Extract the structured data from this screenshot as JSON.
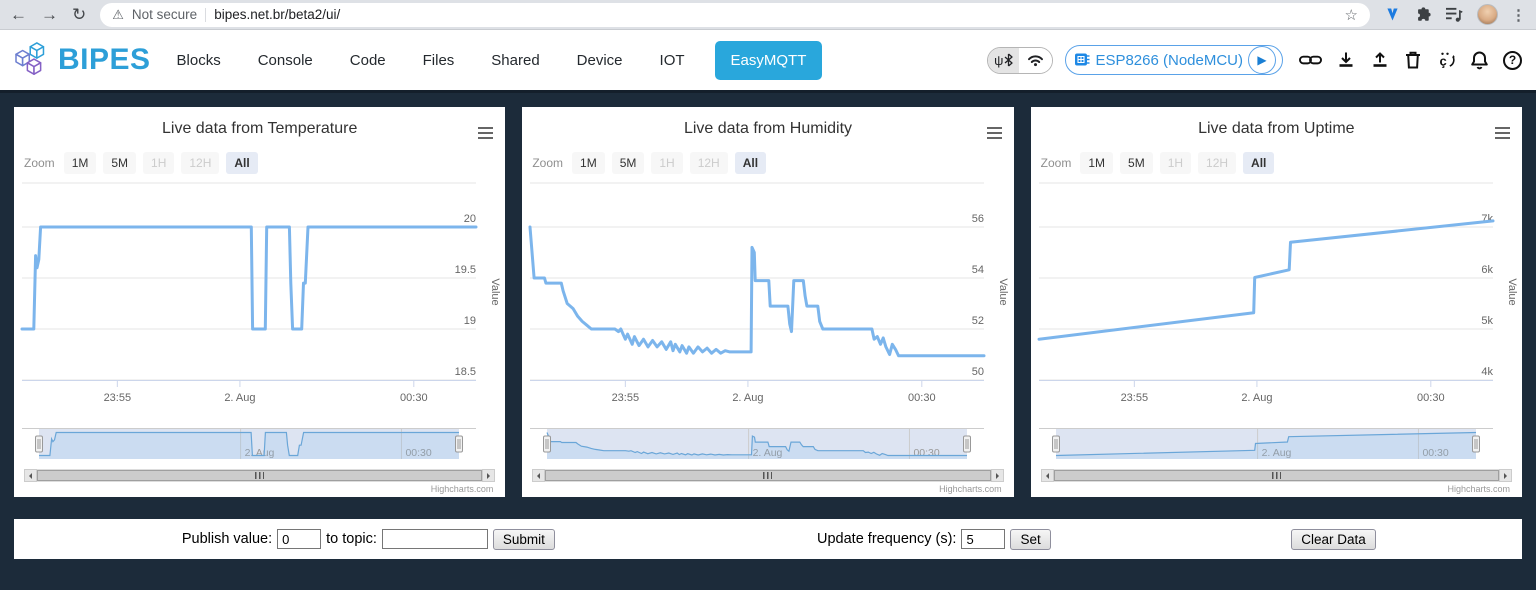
{
  "colors": {
    "brand_blue": "#2d9fd8",
    "easymqtt_button": "#29a7dc",
    "series_blue": "#7cb5ec",
    "background_dark": "#1c2b3a",
    "navigator_mask": "rgba(102,133,194,0.22)"
  },
  "browser": {
    "security_label": "Not secure",
    "url": "bipes.net.br/beta2/ui/"
  },
  "navbar": {
    "brand": "BIPES",
    "items": [
      "Blocks",
      "Console",
      "Code",
      "Files",
      "Shared",
      "Device",
      "IOT"
    ],
    "active_item": "EasyMQTT",
    "device_name": "ESP8266 (NodeMCU)",
    "toolbar_icons": [
      "usb-icon",
      "bluetooth-icon",
      "wifi-icon",
      "play-icon",
      "link-icon",
      "download-icon",
      "upload-icon",
      "trash-icon",
      "language-icon",
      "bell-icon",
      "help-icon"
    ]
  },
  "chart_common": {
    "zoom_label": "Zoom",
    "buttons": [
      {
        "label": "1M",
        "state": "normal"
      },
      {
        "label": "5M",
        "state": "normal"
      },
      {
        "label": "1H",
        "state": "disabled"
      },
      {
        "label": "12H",
        "state": "disabled"
      },
      {
        "label": "All",
        "state": "selected"
      }
    ],
    "ylabel": "Value",
    "credit": "Highcharts.com"
  },
  "chart_data": [
    {
      "type": "line",
      "title": "Live data from Temperature",
      "ylabel": "Value",
      "legend": "none",
      "grid": true,
      "y_ticks": [
        {
          "value": 20,
          "label": "20"
        },
        {
          "value": 19.5,
          "label": "19.5"
        },
        {
          "value": 19,
          "label": "19"
        },
        {
          "value": 18.5,
          "label": "18.5"
        }
      ],
      "x_ticks": [
        {
          "pos": 21,
          "label": "23:55"
        },
        {
          "pos": 48,
          "label": "2. Aug"
        },
        {
          "pos": 86.3,
          "label": "00:30"
        }
      ],
      "navigator_labels": [
        {
          "pos": 48,
          "label": "2. Aug"
        },
        {
          "pos": 86.3,
          "label": "00:30"
        }
      ],
      "series": {
        "name": "Value",
        "color": "#7cb5ec",
        "points": [
          [
            0,
            19
          ],
          [
            2.6,
            19
          ],
          [
            3.0,
            19.72
          ],
          [
            3.3,
            19.6
          ],
          [
            3.7,
            19.68
          ],
          [
            4.1,
            20
          ],
          [
            50.5,
            20
          ],
          [
            50.8,
            19
          ],
          [
            53.6,
            19
          ],
          [
            53.9,
            20
          ],
          [
            58.9,
            20
          ],
          [
            59.2,
            19.45
          ],
          [
            59.6,
            19
          ],
          [
            61.6,
            19
          ],
          [
            62.0,
            19.45
          ],
          [
            62.4,
            19.45
          ],
          [
            63.0,
            20
          ],
          [
            100,
            20
          ]
        ]
      }
    },
    {
      "type": "line",
      "title": "Live data from Humidity",
      "ylabel": "Value",
      "legend": "none",
      "grid": true,
      "y_ticks": [
        {
          "value": 56,
          "label": "56"
        },
        {
          "value": 54,
          "label": "54"
        },
        {
          "value": 52,
          "label": "52"
        },
        {
          "value": 50,
          "label": "50"
        }
      ],
      "x_ticks": [
        {
          "pos": 21,
          "label": "23:55"
        },
        {
          "pos": 48,
          "label": "2. Aug"
        },
        {
          "pos": 86.3,
          "label": "00:30"
        }
      ],
      "navigator_labels": [
        {
          "pos": 48,
          "label": "2. Aug"
        },
        {
          "pos": 86.3,
          "label": "00:30"
        }
      ],
      "series": {
        "name": "Value",
        "color": "#7cb5ec",
        "points": [
          [
            0,
            56
          ],
          [
            0.9,
            54
          ],
          [
            3.2,
            54
          ],
          [
            3.5,
            53.8
          ],
          [
            6.9,
            53.8
          ],
          [
            7.3,
            53.5
          ],
          [
            8.2,
            53.0
          ],
          [
            9.5,
            52.8
          ],
          [
            10.5,
            52.5
          ],
          [
            11.5,
            52.3
          ],
          [
            12.5,
            52.15
          ],
          [
            13.5,
            52
          ],
          [
            18.7,
            52
          ],
          [
            19.5,
            51.9
          ],
          [
            20,
            52
          ],
          [
            21,
            51.6
          ],
          [
            21.5,
            51.8
          ],
          [
            22.5,
            51.4
          ],
          [
            23,
            51.7
          ],
          [
            24,
            51.35
          ],
          [
            25,
            51.6
          ],
          [
            26,
            51.3
          ],
          [
            27,
            51.55
          ],
          [
            28,
            51.3
          ],
          [
            29,
            51.5
          ],
          [
            30,
            51.2
          ],
          [
            31,
            51.5
          ],
          [
            31.5,
            51.15
          ],
          [
            32,
            51.4
          ],
          [
            33,
            51.1
          ],
          [
            33.5,
            51.35
          ],
          [
            34.5,
            51.05
          ],
          [
            35,
            51.3
          ],
          [
            36,
            51.05
          ],
          [
            37,
            51.3
          ],
          [
            38,
            51.1
          ],
          [
            39,
            51.25
          ],
          [
            40,
            51.05
          ],
          [
            41,
            51.2
          ],
          [
            42,
            51.05
          ],
          [
            43,
            51.15
          ],
          [
            44,
            51.1
          ],
          [
            48.7,
            51.1
          ],
          [
            48.9,
            55.2
          ],
          [
            49.4,
            55.0
          ],
          [
            49.6,
            53.9
          ],
          [
            52.6,
            53.9
          ],
          [
            52.9,
            52.9
          ],
          [
            56.8,
            52.9
          ],
          [
            57.2,
            52.2
          ],
          [
            57.6,
            51.9
          ],
          [
            58.1,
            53.9
          ],
          [
            60.2,
            53.9
          ],
          [
            60.6,
            53.3
          ],
          [
            61.0,
            52.9
          ],
          [
            63.4,
            52.9
          ],
          [
            63.8,
            52.3
          ],
          [
            64.5,
            52.0
          ],
          [
            75.3,
            52.0
          ],
          [
            75.8,
            51.6
          ],
          [
            76.5,
            51.7
          ],
          [
            77.2,
            51.4
          ],
          [
            77.8,
            51.65
          ],
          [
            78.4,
            51.3
          ],
          [
            79.2,
            51.0
          ],
          [
            79.8,
            51.4
          ],
          [
            80.5,
            51.2
          ],
          [
            81.2,
            50.95
          ],
          [
            100,
            50.95
          ]
        ]
      }
    },
    {
      "type": "line",
      "title": "Live data from Uptime",
      "ylabel": "Value",
      "legend": "none",
      "grid": true,
      "y_ticks": [
        {
          "value": 7000,
          "label": "7k"
        },
        {
          "value": 6000,
          "label": "6k"
        },
        {
          "value": 5000,
          "label": "5k"
        },
        {
          "value": 4000,
          "label": "4k"
        }
      ],
      "x_ticks": [
        {
          "pos": 21,
          "label": "23:55"
        },
        {
          "pos": 48,
          "label": "2. Aug"
        },
        {
          "pos": 86.3,
          "label": "00:30"
        }
      ],
      "navigator_labels": [
        {
          "pos": 48,
          "label": "2. Aug"
        },
        {
          "pos": 86.3,
          "label": "00:30"
        }
      ],
      "series": {
        "name": "Value",
        "color": "#7cb5ec",
        "points": [
          [
            0,
            4800
          ],
          [
            47.3,
            5320
          ],
          [
            47.5,
            6010
          ],
          [
            55.1,
            6160
          ],
          [
            55.4,
            6700
          ],
          [
            100,
            7120
          ]
        ]
      }
    }
  ],
  "controls": {
    "publish_label": "Publish value:",
    "publish_value": "0",
    "topic_label": "to topic:",
    "topic_value": "",
    "submit_label": "Submit",
    "frequency_label": "Update frequency (s):",
    "frequency_value": "5",
    "set_label": "Set",
    "clear_label": "Clear Data"
  }
}
